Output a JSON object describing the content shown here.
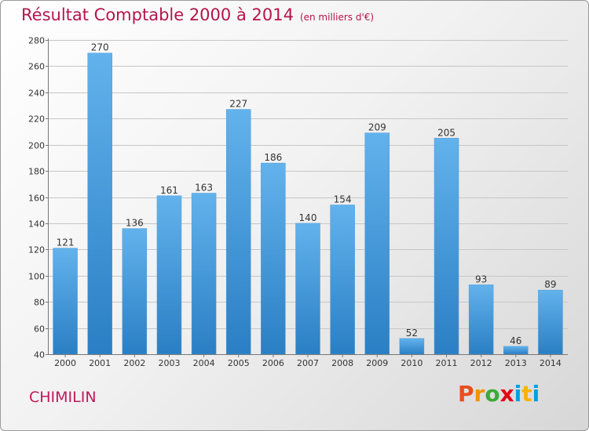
{
  "header": {
    "title": "Résultat Comptable 2000 à 2014",
    "subtitle": "(en milliers d'€)"
  },
  "footer": {
    "commune": "CHIMILIN",
    "logo_text": "Proxiti"
  },
  "colors": {
    "title": "#b5154a",
    "bar_top": "#62b2ec",
    "bar_bottom": "#2a7fc4",
    "grid": "#c6c6c6",
    "logo": [
      "#e94e1b",
      "#f39200",
      "#3aaa35",
      "#e30613",
      "#009fe3",
      "#f9b200",
      "#009fe3"
    ]
  },
  "chart_data": {
    "type": "bar",
    "title": "Résultat Comptable 2000 à 2014",
    "subtitle": "(en milliers d'€)",
    "categories": [
      "2000",
      "2001",
      "2002",
      "2003",
      "2004",
      "2005",
      "2006",
      "2007",
      "2008",
      "2009",
      "2010",
      "2011",
      "2012",
      "2013",
      "2014"
    ],
    "values": [
      121,
      270,
      136,
      161,
      163,
      227,
      186,
      140,
      154,
      209,
      52,
      205,
      93,
      46,
      89
    ],
    "ylim": [
      40,
      280
    ],
    "yticks": [
      40,
      60,
      80,
      100,
      120,
      140,
      160,
      180,
      200,
      220,
      240,
      260,
      280
    ],
    "grid": true,
    "legend": "none",
    "data_labels": true
  }
}
